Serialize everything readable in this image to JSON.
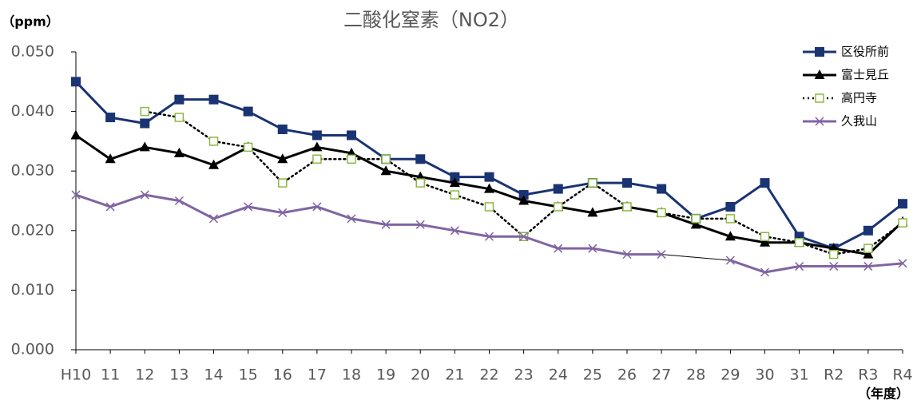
{
  "chart_data": {
    "type": "line",
    "title": "二酸化窒素（NO2）",
    "y_label": "（ppm）",
    "x_label": "（年度）",
    "categories": [
      "H10",
      "11",
      "12",
      "13",
      "14",
      "15",
      "16",
      "17",
      "18",
      "19",
      "20",
      "21",
      "22",
      "23",
      "24",
      "25",
      "26",
      "27",
      "28",
      "29",
      "30",
      "31",
      "R2",
      "R3",
      "R4"
    ],
    "ylim": [
      0,
      0.05
    ],
    "yticks": [
      {
        "value": 0,
        "label": "0.000"
      },
      {
        "value": 0.01,
        "label": "0.010"
      },
      {
        "value": 0.02,
        "label": "0.020"
      },
      {
        "value": 0.03,
        "label": "0.030"
      },
      {
        "value": 0.04,
        "label": "0.040"
      },
      {
        "value": 0.05,
        "label": "0.050"
      }
    ],
    "legend": "top-right",
    "series": [
      {
        "name": "区役所前",
        "color": "#1a3372",
        "marker": "square",
        "dash": "solid",
        "values": [
          0.045,
          0.039,
          0.038,
          0.042,
          0.042,
          0.04,
          0.037,
          0.036,
          0.036,
          0.032,
          0.032,
          0.029,
          0.029,
          0.026,
          0.027,
          0.028,
          0.028,
          0.027,
          0.022,
          0.024,
          0.028,
          0.019,
          0.017,
          0.02,
          0.0245
        ]
      },
      {
        "name": "富士見丘",
        "color": "#000000",
        "marker": "triangle",
        "dash": "solid",
        "values": [
          0.036,
          0.032,
          0.034,
          0.033,
          0.031,
          0.034,
          0.032,
          0.034,
          0.033,
          0.03,
          0.029,
          0.028,
          0.027,
          0.025,
          0.024,
          0.023,
          0.024,
          0.023,
          0.021,
          0.019,
          0.018,
          0.018,
          0.017,
          0.016,
          0.0215
        ]
      },
      {
        "name": "高円寺",
        "color": "#000000",
        "marker_color": "#8db843",
        "marker": "square-open",
        "dash": "dotted",
        "values": [
          null,
          null,
          0.04,
          0.039,
          0.035,
          0.034,
          0.028,
          0.032,
          0.032,
          0.032,
          0.028,
          0.026,
          0.024,
          0.019,
          0.024,
          0.028,
          0.024,
          0.023,
          0.022,
          0.022,
          0.019,
          0.018,
          0.016,
          0.017,
          0.0213
        ]
      },
      {
        "name": "久我山",
        "color": "#8064a2",
        "marker": "x",
        "dash": "solid",
        "values": [
          0.026,
          0.024,
          0.026,
          0.025,
          0.022,
          0.024,
          0.023,
          0.024,
          0.022,
          0.021,
          0.021,
          0.02,
          0.019,
          0.019,
          0.017,
          0.017,
          0.016,
          0.016,
          null,
          0.015,
          0.013,
          0.014,
          0.014,
          0.014,
          0.0145
        ]
      }
    ]
  }
}
